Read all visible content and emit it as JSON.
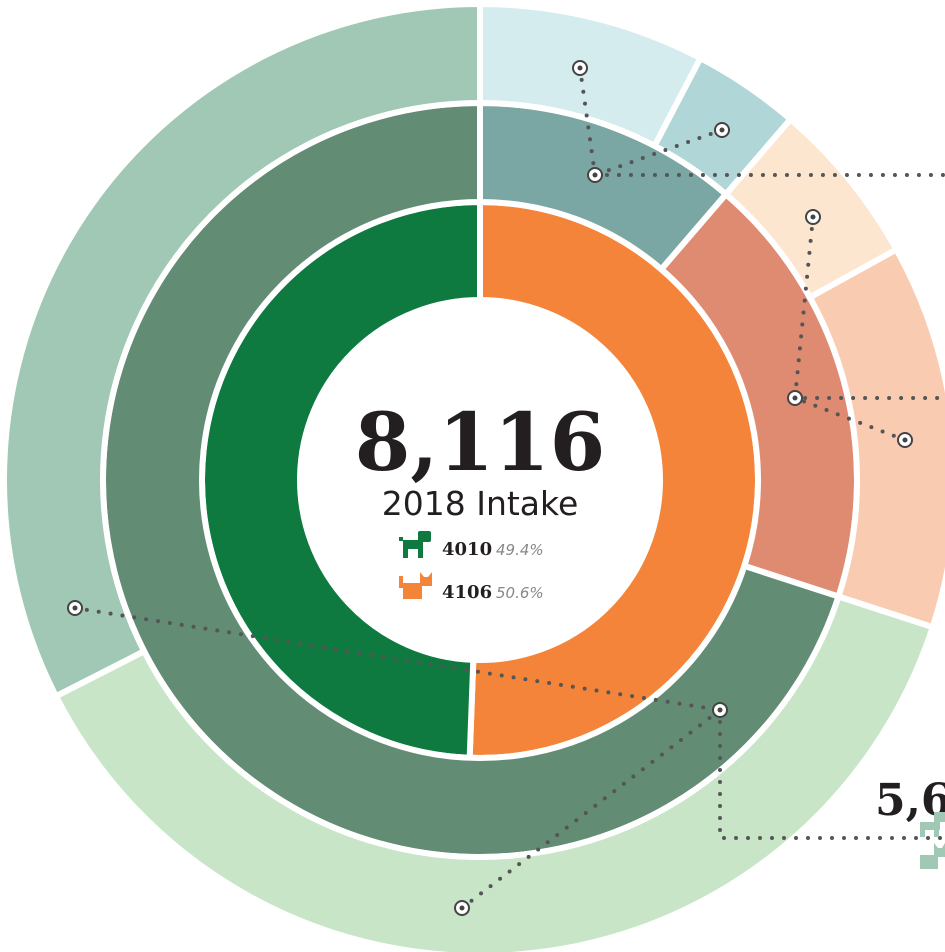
{
  "chart_data": {
    "type": "sunburst",
    "title": "8,116",
    "subtitle": "2018 Intake",
    "annotation": "5,6",
    "rings": [
      {
        "values": [
          4106,
          4010
        ],
        "colors": [
          "#f4843a",
          "#0f7a40"
        ],
        "percents": [
          50.6,
          49.4
        ],
        "percent_labels": [
          "50.6%",
          "49.4%"
        ]
      },
      {
        "values": [
          918,
          1517,
          5681
        ],
        "colors": [
          "#7aa6a3",
          "#de8b72",
          "#638c74"
        ]
      },
      {
        "values": [
          622,
          296,
          458,
          1059,
          3043,
          2638
        ],
        "colors": [
          "#d4ecee",
          "#b1d6d8",
          "#fce6cf",
          "#f9cbb0",
          "#c8e6c7",
          "#a0c8b5"
        ]
      }
    ]
  }
}
